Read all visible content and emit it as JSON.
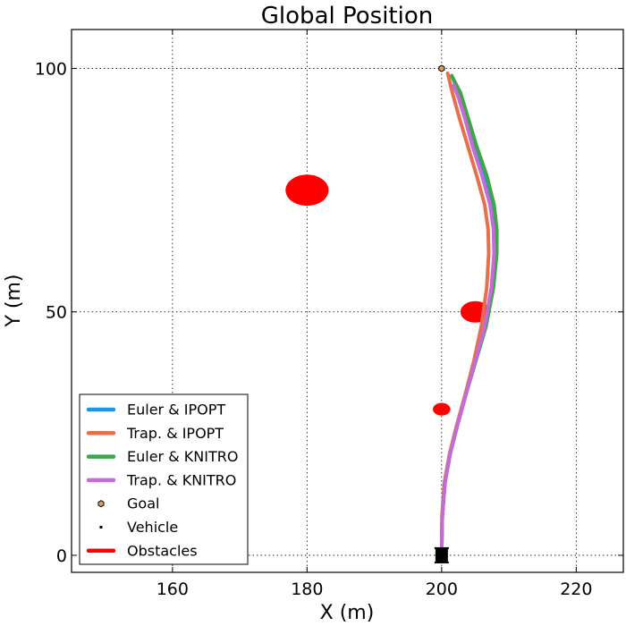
{
  "chart_data": {
    "type": "line",
    "title": "Global Position",
    "xlabel": "X (m)",
    "ylabel": "Y (m)",
    "xlim": [
      145,
      227
    ],
    "ylim": [
      -3.5,
      108
    ],
    "xticks": [
      160,
      180,
      200,
      220
    ],
    "yticks": [
      0,
      50,
      100
    ],
    "grid": true,
    "legend_position": "lower-left",
    "series": [
      {
        "name": "Euler & IPOPT",
        "color": "#1a97e6",
        "points": [
          [
            200,
            0
          ],
          [
            200.1,
            8
          ],
          [
            200.5,
            15
          ],
          [
            201.3,
            21
          ],
          [
            202.4,
            27
          ],
          [
            203.6,
            33
          ],
          [
            205,
            40
          ],
          [
            206.4,
            47
          ],
          [
            207.5,
            55
          ],
          [
            208,
            62
          ],
          [
            208,
            67
          ],
          [
            207.6,
            72
          ],
          [
            206.4,
            78
          ],
          [
            205,
            84
          ],
          [
            203.7,
            90
          ],
          [
            202.6,
            95
          ],
          [
            201.5,
            98.5
          ]
        ]
      },
      {
        "name": "Trap. & IPOPT",
        "color": "#e6704a",
        "points": [
          [
            200,
            0
          ],
          [
            200.05,
            8
          ],
          [
            200.4,
            15
          ],
          [
            201.2,
            21
          ],
          [
            202.3,
            27
          ],
          [
            203.5,
            33
          ],
          [
            204.8,
            40
          ],
          [
            205.9,
            47
          ],
          [
            206.7,
            55
          ],
          [
            207,
            62
          ],
          [
            206.9,
            67
          ],
          [
            206.4,
            72
          ],
          [
            205.2,
            78
          ],
          [
            203.9,
            84
          ],
          [
            202.6,
            90
          ],
          [
            201.6,
            95
          ],
          [
            200.9,
            99
          ]
        ]
      },
      {
        "name": "Euler & KNITRO",
        "color": "#3ea54b",
        "points": [
          [
            200,
            0
          ],
          [
            200.1,
            8
          ],
          [
            200.5,
            15
          ],
          [
            201.3,
            21
          ],
          [
            202.4,
            27
          ],
          [
            203.6,
            33
          ],
          [
            205.1,
            40
          ],
          [
            206.6,
            47
          ],
          [
            207.7,
            55
          ],
          [
            208.2,
            62
          ],
          [
            208.2,
            67
          ],
          [
            207.8,
            72
          ],
          [
            206.7,
            78
          ],
          [
            205.2,
            84
          ],
          [
            203.9,
            90
          ],
          [
            202.8,
            95
          ],
          [
            201.5,
            98.5
          ]
        ]
      },
      {
        "name": "Trap. & KNITRO",
        "color": "#c56ad6",
        "points": [
          [
            200,
            0
          ],
          [
            200.1,
            8
          ],
          [
            200.5,
            15
          ],
          [
            201.3,
            21
          ],
          [
            202.4,
            27
          ],
          [
            203.6,
            33
          ],
          [
            205,
            40
          ],
          [
            206.4,
            47
          ],
          [
            207.4,
            55
          ],
          [
            207.8,
            62
          ],
          [
            207.7,
            67
          ],
          [
            207.2,
            72
          ],
          [
            206,
            78
          ],
          [
            204.6,
            84
          ],
          [
            203.4,
            90
          ],
          [
            202.5,
            94
          ],
          [
            201.8,
            96.5
          ]
        ]
      }
    ],
    "goal": {
      "name": "Goal",
      "x": 200,
      "y": 100,
      "color": "#d9a055"
    },
    "vehicle": {
      "name": "Vehicle",
      "x": 200,
      "y": 0,
      "color": "#000000"
    },
    "obstacles": {
      "name": "Obstacles",
      "color": "#ff0000",
      "items": [
        {
          "x": 180,
          "y": 75,
          "r": 3.2
        },
        {
          "x": 205,
          "y": 50,
          "r": 2.2
        },
        {
          "x": 200,
          "y": 30,
          "r": 1.3
        }
      ]
    }
  }
}
